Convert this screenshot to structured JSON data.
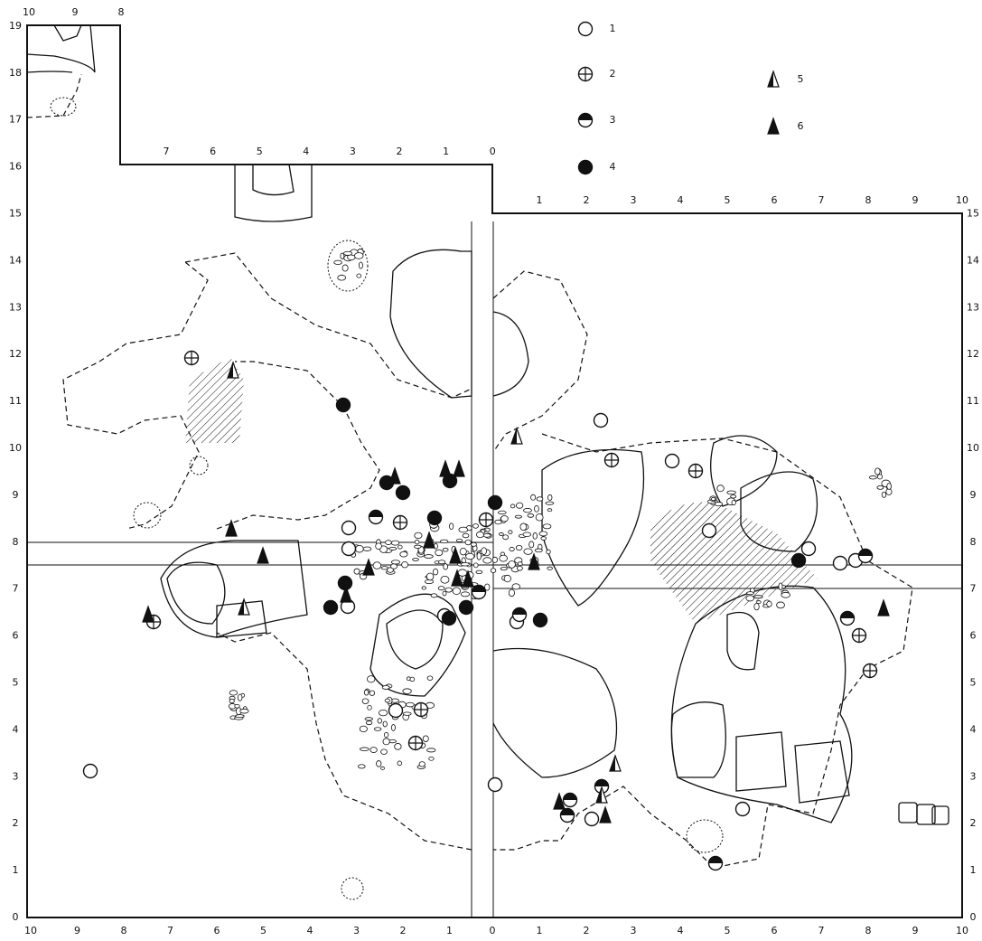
{
  "legend": [
    {
      "label": "1"
    },
    {
      "label": "2"
    },
    {
      "label": "3"
    },
    {
      "label": "4"
    },
    {
      "label": "5"
    },
    {
      "label": "6"
    }
  ],
  "scales": {
    "left": [
      "0",
      "1",
      "2",
      "3",
      "4",
      "5",
      "6",
      "7",
      "8",
      "9",
      "10",
      "11",
      "12",
      "13",
      "14",
      "15",
      "16",
      "17",
      "18",
      "19"
    ],
    "right": [
      "0",
      "1",
      "2",
      "3",
      "4",
      "5",
      "6",
      "7",
      "8",
      "9",
      "10",
      "11",
      "12",
      "13",
      "14",
      "15"
    ],
    "bottom_west": [
      "10",
      "9",
      "8",
      "7",
      "6",
      "5",
      "4",
      "3",
      "2",
      "1"
    ],
    "bottom_center": "0",
    "bottom_east": [
      "1",
      "2",
      "3",
      "4",
      "5",
      "6",
      "7",
      "8",
      "9",
      "10"
    ],
    "top_nw": [
      "10",
      "9",
      "8"
    ],
    "top_middle": [
      "7",
      "6",
      "5",
      "4",
      "3",
      "2",
      "1",
      "0"
    ],
    "top_east": [
      "1",
      "2",
      "3",
      "4",
      "5",
      "6",
      "7",
      "8",
      "9",
      "10"
    ]
  }
}
